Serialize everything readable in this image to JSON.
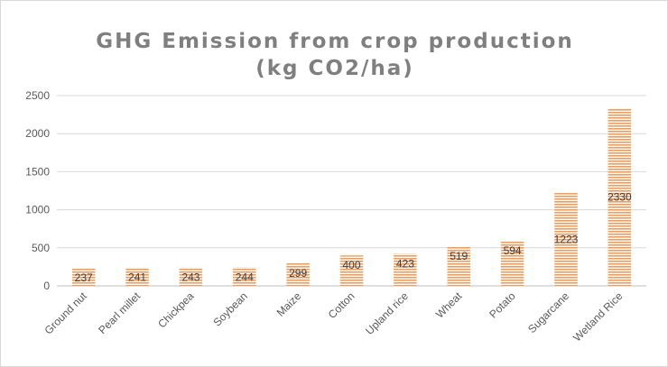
{
  "chart_data": {
    "type": "bar",
    "title_lines": [
      "GHG Emission from crop production",
      "(kg CO2/ha)"
    ],
    "categories": [
      "Ground nut",
      "Pearl millet",
      "Chickpea",
      "Soybean",
      "Maize",
      "Cotton",
      "Upland rice",
      "Wheat",
      "Potato",
      "Sugarcane",
      "Wetland Rice"
    ],
    "values": [
      237,
      241,
      243,
      244,
      299,
      400,
      423,
      519,
      594,
      1223,
      2330
    ],
    "value_labels": [
      "237",
      "241",
      "243",
      "244",
      "299",
      "400",
      "423",
      "519",
      "594",
      "1223",
      "2330"
    ],
    "yticks": [
      "0",
      "500",
      "1000",
      "1500",
      "2000",
      "2500"
    ],
    "ylim": [
      0,
      2500
    ],
    "xlabel": "",
    "ylabel": "",
    "grid": true,
    "legend": "none",
    "bar_color": "#ed9d5d",
    "bar_fill": "horizontal-stripes"
  }
}
